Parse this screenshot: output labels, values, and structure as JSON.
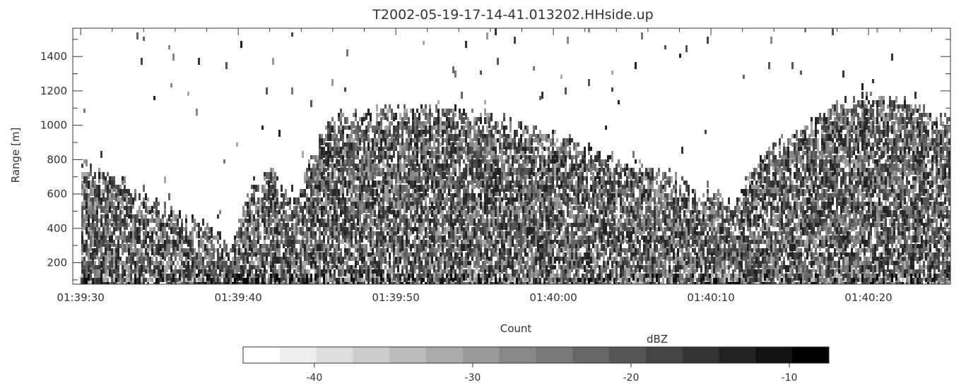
{
  "chart_data": {
    "type": "heatmap",
    "title": "T2002-05-19-17-14-41.013202.HHside.up",
    "xlabel": "Count",
    "ylabel": "Range [m]",
    "x_ticks": [
      "01:39:30",
      "01:39:40",
      "01:39:50",
      "01:40:00",
      "01:40:10",
      "01:40:20"
    ],
    "x_tick_seconds": [
      0,
      10,
      20,
      30,
      40,
      50
    ],
    "x_range_seconds": [
      -0.5,
      55.2
    ],
    "y_ticks": [
      200,
      400,
      600,
      800,
      1000,
      1200,
      1400
    ],
    "ylim": [
      75,
      1565
    ],
    "colorbar": {
      "label": "dBZ",
      "range": [
        -44.5,
        -7.5
      ],
      "ticks": [
        -40,
        -30,
        -20,
        -10
      ],
      "levels": 16
    },
    "echo_top_profile": {
      "time_seconds": [
        0,
        2,
        4,
        6,
        8,
        9.5,
        10.5,
        12,
        13.5,
        14.5,
        15.5,
        16.5,
        18,
        20,
        22,
        25,
        27,
        28.5,
        30,
        31.5,
        33,
        35,
        36.5,
        38,
        39,
        40,
        41.5,
        42.5,
        44,
        46,
        48,
        50,
        52,
        54,
        55
      ],
      "top_m": [
        820,
        720,
        620,
        520,
        420,
        330,
        650,
        760,
        560,
        800,
        1000,
        1080,
        1100,
        1130,
        1130,
        1100,
        1040,
        1000,
        970,
        920,
        860,
        800,
        760,
        700,
        640,
        620,
        560,
        760,
        920,
        1020,
        1160,
        1190,
        1180,
        1100,
        1060
      ]
    }
  }
}
